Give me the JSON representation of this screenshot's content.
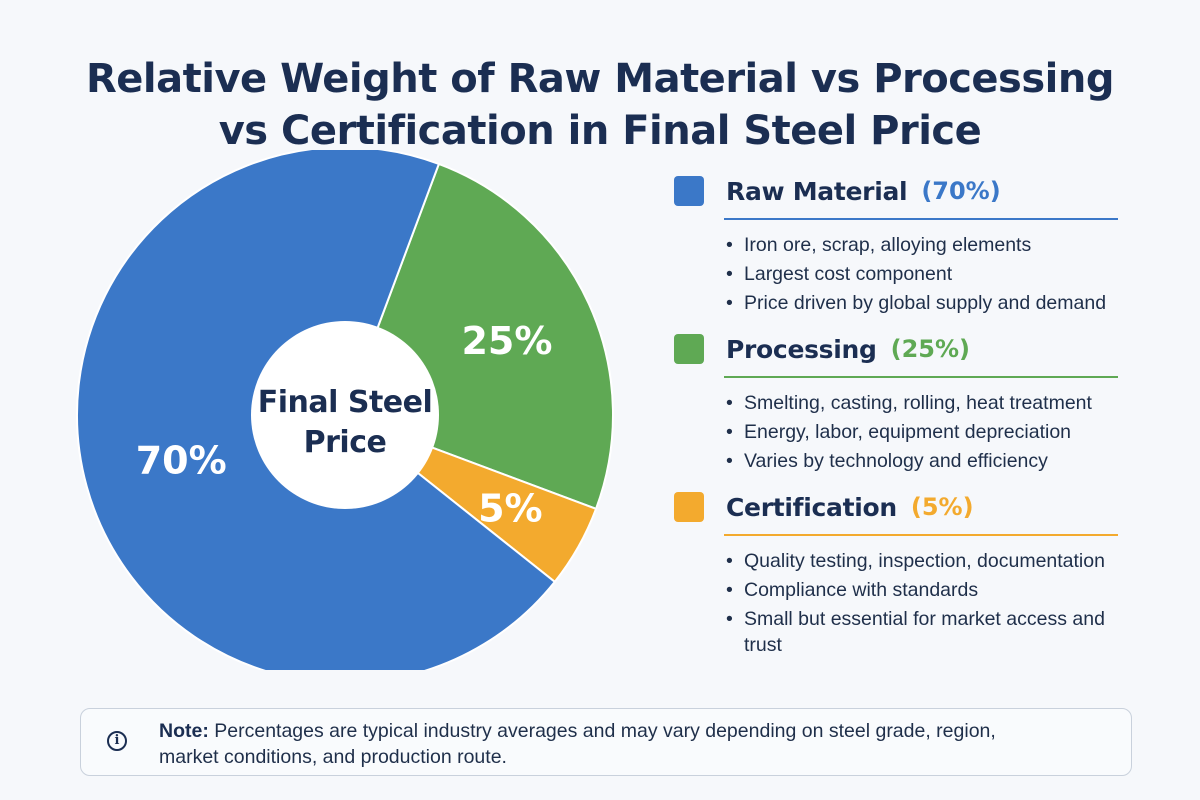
{
  "chart_data": {
    "type": "pie",
    "style": "donut",
    "title": "Relative Weight of Raw Material vs Processing vs Certification in Final Steel Price",
    "title_lines": [
      "Relative Weight of Raw Material vs Processing",
      "vs Certification in Final Steel Price"
    ],
    "center_label_lines": [
      "Final Steel",
      "Price"
    ],
    "slices": [
      {
        "name": "Raw Material",
        "value": 70,
        "label": "70%",
        "color": "#3b78c8"
      },
      {
        "name": "Processing",
        "value": 25,
        "label": "25%",
        "color": "#5fa954"
      },
      {
        "name": "Certification",
        "value": 5,
        "label": "5%",
        "color": "#f3aa2e"
      }
    ],
    "legend_placement": "right"
  },
  "legend": {
    "items": [
      {
        "name": "Raw Material",
        "pct": "(70%)",
        "color": "#3b78c8",
        "bullets": [
          "Iron ore, scrap, alloying elements",
          "Largest cost component",
          "Price driven by global supply and demand"
        ]
      },
      {
        "name": "Processing",
        "pct": "(25%)",
        "color": "#5fa954",
        "bullets": [
          "Smelting, casting, rolling, heat treatment",
          "Energy, labor, equipment depreciation",
          "Varies by technology and efficiency"
        ]
      },
      {
        "name": "Certification",
        "pct": "(5%)",
        "color": "#f3aa2e",
        "bullets": [
          "Quality testing, inspection, documentation",
          "Compliance with standards",
          "Small but essential for market access and trust"
        ]
      }
    ]
  },
  "note": {
    "icon": "info-icon",
    "label": "Note:",
    "text": "Percentages are typical industry averages and may vary depending on steel grade, region, market conditions, and production route."
  }
}
